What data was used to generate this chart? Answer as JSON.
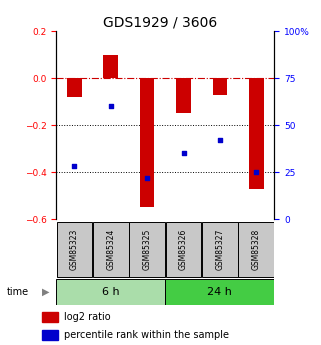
{
  "title": "GDS1929 / 3606",
  "samples": [
    "GSM85323",
    "GSM85324",
    "GSM85325",
    "GSM85326",
    "GSM85327",
    "GSM85328"
  ],
  "log2_ratio": [
    -0.08,
    0.1,
    -0.55,
    -0.15,
    -0.07,
    -0.47
  ],
  "percentile_rank": [
    28,
    60,
    22,
    35,
    42,
    25
  ],
  "left_ylim": [
    -0.6,
    0.2
  ],
  "right_ylim": [
    0,
    100
  ],
  "left_yticks": [
    -0.6,
    -0.4,
    -0.2,
    0.0,
    0.2
  ],
  "right_yticks": [
    0,
    25,
    50,
    75,
    100
  ],
  "right_yticklabels": [
    "0",
    "25",
    "50",
    "75",
    "100%"
  ],
  "time_groups": [
    {
      "label": "6 h",
      "color": "#aaddaa"
    },
    {
      "label": "24 h",
      "color": "#44cc44"
    }
  ],
  "bar_color": "#CC0000",
  "point_color": "#0000CC",
  "bar_width": 0.4,
  "hline_color": "#CC0000",
  "dotted_line_color": "#000000",
  "sample_box_color": "#C8C8C8",
  "legend_bar_label": "log2 ratio",
  "legend_point_label": "percentile rank within the sample",
  "title_fontsize": 10,
  "tick_fontsize": 6.5,
  "legend_fontsize": 7,
  "sample_fontsize": 5.5,
  "time_fontsize": 8
}
